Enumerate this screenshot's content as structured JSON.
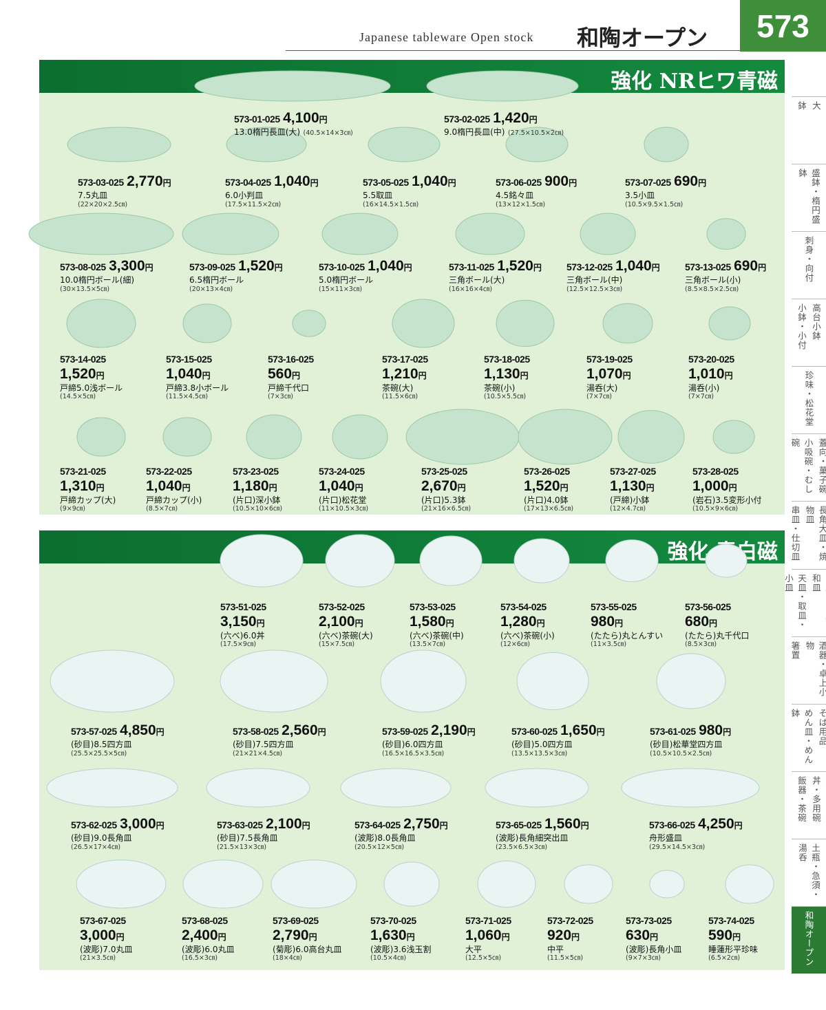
{
  "header": {
    "subtitle": "Japanese tableware Open stock",
    "title": "和陶オープン",
    "page": "573"
  },
  "yen": "円",
  "sections": [
    {
      "title": "強化 NRヒワ青磁",
      "items": [
        {
          "code": "573-01-025",
          "price": "4,100",
          "name": "13.0楕円長皿(大)",
          "size": "(40.5×14×3㎝)"
        },
        {
          "code": "573-02-025",
          "price": "1,420",
          "name": "9.0楕円長皿(中)",
          "size": "(27.5×10.5×2㎝)"
        },
        {
          "code": "573-03-025",
          "price": "2,770",
          "name": "7.5丸皿",
          "size": "(22×20×2.5㎝)"
        },
        {
          "code": "573-04-025",
          "price": "1,040",
          "name": "6.0小判皿",
          "size": "(17.5×11.5×2㎝)"
        },
        {
          "code": "573-05-025",
          "price": "1,040",
          "name": "5.5取皿",
          "size": "(16×14.5×1.5㎝)"
        },
        {
          "code": "573-06-025",
          "price": "900",
          "name": "4.5銘々皿",
          "size": "(13×12×1.5㎝)"
        },
        {
          "code": "573-07-025",
          "price": "690",
          "name": "3.5小皿",
          "size": "(10.5×9.5×1.5㎝)"
        },
        {
          "code": "573-08-025",
          "price": "3,300",
          "name": "10.0楕円ボール(細)",
          "size": "(30×13.5×5㎝)"
        },
        {
          "code": "573-09-025",
          "price": "1,520",
          "name": "6.5楕円ボール",
          "size": "(20×13×4㎝)"
        },
        {
          "code": "573-10-025",
          "price": "1,040",
          "name": "5.0楕円ボール",
          "size": "(15×11×3㎝)"
        },
        {
          "code": "573-11-025",
          "price": "1,520",
          "name": "三角ボール(大)",
          "size": "(16×16×4㎝)"
        },
        {
          "code": "573-12-025",
          "price": "1,040",
          "name": "三角ボール(中)",
          "size": "(12.5×12.5×3㎝)"
        },
        {
          "code": "573-13-025",
          "price": "690",
          "name": "三角ボール(小)",
          "size": "(8.5×8.5×2.5㎝)"
        },
        {
          "code": "573-14-025",
          "price": "1,520",
          "name": "戸締5.0浅ボール",
          "size": "(14.5×5㎝)"
        },
        {
          "code": "573-15-025",
          "price": "1,040",
          "name": "戸締3.8小ボール",
          "size": "(11.5×4.5㎝)"
        },
        {
          "code": "573-16-025",
          "price": "560",
          "name": "戸締千代口",
          "size": "(7×3㎝)"
        },
        {
          "code": "573-17-025",
          "price": "1,210",
          "name": "茶碗(大)",
          "size": "(11.5×6㎝)"
        },
        {
          "code": "573-18-025",
          "price": "1,130",
          "name": "茶碗(小)",
          "size": "(10.5×5.5㎝)"
        },
        {
          "code": "573-19-025",
          "price": "1,070",
          "name": "湯呑(大)",
          "size": "(7×7㎝)"
        },
        {
          "code": "573-20-025",
          "price": "1,010",
          "name": "湯呑(小)",
          "size": "(7×7㎝)"
        },
        {
          "code": "573-21-025",
          "price": "1,310",
          "name": "戸締カップ(大)",
          "size": "(9×9㎝)"
        },
        {
          "code": "573-22-025",
          "price": "1,040",
          "name": "戸締カップ(小)",
          "size": "(8.5×7㎝)"
        },
        {
          "code": "573-23-025",
          "price": "1,180",
          "name": "(片口)深小鉢",
          "size": "(10.5×10×6㎝)"
        },
        {
          "code": "573-24-025",
          "price": "1,040",
          "name": "(片口)松花堂",
          "size": "(11×10.5×3㎝)"
        },
        {
          "code": "573-25-025",
          "price": "2,670",
          "name": "(片口)5.3鉢",
          "size": "(21×16×6.5㎝)"
        },
        {
          "code": "573-26-025",
          "price": "1,520",
          "name": "(片口)4.0鉢",
          "size": "(17×13×6.5㎝)"
        },
        {
          "code": "573-27-025",
          "price": "1,130",
          "name": "(戸締)小鉢",
          "size": "(12×4.7㎝)"
        },
        {
          "code": "573-28-025",
          "price": "1,000",
          "name": "(岩石)3.5変形小付",
          "size": "(10.5×9×6㎝)"
        }
      ]
    },
    {
      "title": "強化 青白磁",
      "items": [
        {
          "code": "573-51-025",
          "price": "3,150",
          "name": "(六べ)6.0丼",
          "size": "(17.5×9㎝)"
        },
        {
          "code": "573-52-025",
          "price": "2,100",
          "name": "(六べ)茶碗(大)",
          "size": "(15×7.5㎝)"
        },
        {
          "code": "573-53-025",
          "price": "1,580",
          "name": "(六べ)茶碗(中)",
          "size": "(13.5×7㎝)"
        },
        {
          "code": "573-54-025",
          "price": "1,280",
          "name": "(六べ)茶碗(小)",
          "size": "(12×6㎝)"
        },
        {
          "code": "573-55-025",
          "price": "980",
          "name": "(たたら)丸とんすい",
          "size": "(11×3.5㎝)"
        },
        {
          "code": "573-56-025",
          "price": "680",
          "name": "(たたら)丸千代口",
          "size": "(8.5×3㎝)"
        },
        {
          "code": "573-57-025",
          "price": "4,850",
          "name": "(砂目)8.5四方皿",
          "size": "(25.5×25.5×5㎝)"
        },
        {
          "code": "573-58-025",
          "price": "2,560",
          "name": "(砂目)7.5四方皿",
          "size": "(21×21×4.5㎝)"
        },
        {
          "code": "573-59-025",
          "price": "2,190",
          "name": "(砂目)6.0四方皿",
          "size": "(16.5×16.5×3.5㎝)"
        },
        {
          "code": "573-60-025",
          "price": "1,650",
          "name": "(砂目)5.0四方皿",
          "size": "(13.5×13.5×3㎝)"
        },
        {
          "code": "573-61-025",
          "price": "980",
          "name": "(砂目)松華堂四方皿",
          "size": "(10.5×10.5×2.5㎝)"
        },
        {
          "code": "573-62-025",
          "price": "3,000",
          "name": "(砂目)9.0長角皿",
          "size": "(26.5×17×4㎝)"
        },
        {
          "code": "573-63-025",
          "price": "2,100",
          "name": "(砂目)7.5長角皿",
          "size": "(21.5×13×3㎝)"
        },
        {
          "code": "573-64-025",
          "price": "2,750",
          "name": "(波彫)8.0長角皿",
          "size": "(20.5×12×5㎝)"
        },
        {
          "code": "573-65-025",
          "price": "1,560",
          "name": "(波彫)長角細突出皿",
          "size": "(23.5×6.5×3㎝)"
        },
        {
          "code": "573-66-025",
          "price": "4,250",
          "name": "舟形盛皿",
          "size": "(29.5×14.5×3㎝)"
        },
        {
          "code": "573-67-025",
          "price": "3,000",
          "name": "(波彫)7.0丸皿",
          "size": "(21×3.5㎝)"
        },
        {
          "code": "573-68-025",
          "price": "2,400",
          "name": "(波彫)6.0丸皿",
          "size": "(16.5×3㎝)"
        },
        {
          "code": "573-69-025",
          "price": "2,790",
          "name": "(菊彫)6.0高台丸皿",
          "size": "(18×4㎝)"
        },
        {
          "code": "573-70-025",
          "price": "1,630",
          "name": "(波彫)3.6浅玉割",
          "size": "(10.5×4㎝)"
        },
        {
          "code": "573-71-025",
          "price": "1,060",
          "name": "大平",
          "size": "(12.5×5㎝)"
        },
        {
          "code": "573-72-025",
          "price": "920",
          "name": "中平",
          "size": "(11.5×5㎝)"
        },
        {
          "code": "573-73-025",
          "price": "630",
          "name": "(波彫)長角小皿",
          "size": "(9×7×3㎝)"
        },
        {
          "code": "573-74-025",
          "price": "590",
          "name": "睡蓮形平珍味",
          "size": "(6.5×2㎝)"
        }
      ]
    }
  ],
  "tabs": [
    [
      "大",
      "鉢"
    ],
    [
      "盛鉢・楕円盛鉢"
    ],
    [
      "刺身・向付"
    ],
    [
      "高台小鉢",
      "小鉢・小付"
    ],
    [
      "珍味・松花堂"
    ],
    [
      "蓋向・菓子碗",
      "小吸碗・むし碗"
    ],
    [
      "長角大皿・焼物皿",
      "串皿・仕切皿"
    ],
    [
      "角皿・大皿・和皿",
      "天皿・取皿・小皿"
    ],
    [
      "酒器・卓上小物",
      "箸置"
    ],
    [
      "そば用品",
      "めん皿・めん鉢"
    ],
    [
      "丼・多用碗",
      "飯器・茶碗"
    ],
    [
      "土瓶・急須・湯呑"
    ],
    [
      "和陶オープン"
    ]
  ]
}
